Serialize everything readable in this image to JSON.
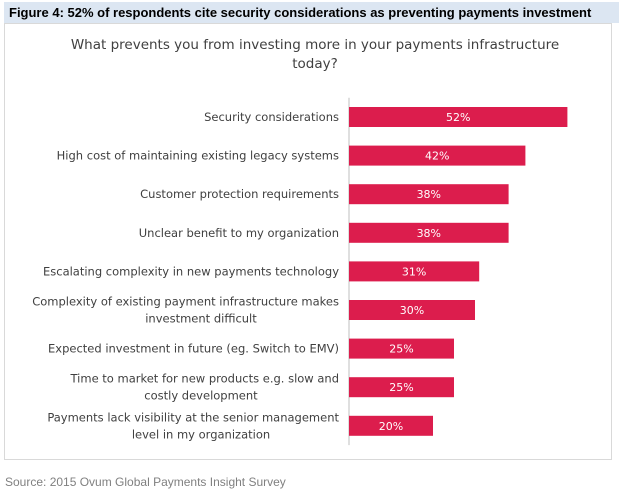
{
  "figure_caption": "Figure 4: 52% of respondents cite security considerations as preventing payments investment",
  "source": "Source: 2015 Ovum Global Payments Insight Survey",
  "chart_data": {
    "type": "bar",
    "orientation": "horizontal",
    "title_lines": [
      "What prevents you from investing more in your payments infrastructure",
      "today?"
    ],
    "categories": [
      [
        "Security considerations"
      ],
      [
        "High cost of maintaining existing legacy systems"
      ],
      [
        "Customer protection  requirements"
      ],
      [
        "Unclear benefit to my organization"
      ],
      [
        "Escalating complexity in new payments technology"
      ],
      [
        "Complexity of existing payment infrastructure makes",
        "investment difficult"
      ],
      [
        "Expected investment in future (eg. Switch to EMV)"
      ],
      [
        "Time to market for new products e.g. slow and",
        "costly development"
      ],
      [
        "Payments lack visibility at the senior management",
        "level in my organization"
      ]
    ],
    "values": [
      52,
      42,
      38,
      38,
      31,
      30,
      25,
      25,
      20
    ],
    "labels": [
      "52%",
      "42%",
      "38%",
      "38%",
      "31%",
      "30%",
      "25%",
      "25%",
      "20%"
    ],
    "unit": "%",
    "bar_color": "#dc1d4d",
    "label_color": "#ffffff",
    "axis_line_color": "#bfbfbf",
    "grid": false,
    "legend": "none"
  }
}
